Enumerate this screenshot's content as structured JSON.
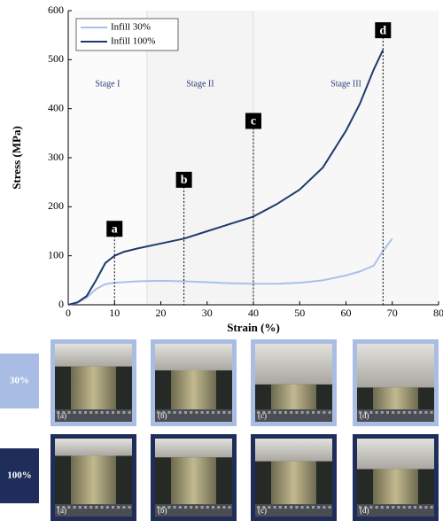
{
  "chart_data": {
    "type": "line",
    "xlabel": "Strain (%)",
    "ylabel": "Stress (MPa)",
    "x": [
      0,
      2,
      4,
      6,
      8,
      10,
      12,
      15,
      20,
      25,
      30,
      35,
      40,
      45,
      50,
      55,
      60,
      63,
      66,
      68,
      70
    ],
    "series": [
      {
        "name": "Infill 30%",
        "color": "#a9c1e8",
        "values": [
          0,
          4,
          15,
          32,
          42,
          45,
          46,
          48,
          49,
          48,
          46,
          44,
          43,
          43,
          45,
          50,
          60,
          68,
          80,
          110,
          135
        ]
      },
      {
        "name": "Infill 100%",
        "color": "#1f3a6e",
        "values": [
          0,
          5,
          18,
          50,
          85,
          100,
          108,
          115,
          125,
          135,
          150,
          165,
          180,
          205,
          235,
          280,
          355,
          410,
          480,
          520,
          null
        ]
      }
    ],
    "xlim": [
      0,
      80
    ],
    "ylim": [
      0,
      600
    ],
    "xticks": [
      0,
      10,
      20,
      30,
      40,
      50,
      60,
      70,
      80
    ],
    "yticks": [
      0,
      100,
      200,
      300,
      400,
      500,
      600
    ],
    "legend": "upper left",
    "stages": [
      {
        "label": "Stage I",
        "start": 0,
        "end": 17,
        "color": "#fbfbfb"
      },
      {
        "label": "Stage II",
        "start": 17,
        "end": 40,
        "color": "#f4f4f4"
      },
      {
        "label": "Stage III",
        "start": 40,
        "end": 80,
        "color": "#f7f7f7"
      }
    ],
    "annotations": [
      {
        "label": "a",
        "x": 10,
        "y": 155
      },
      {
        "label": "b",
        "x": 25,
        "y": 255
      },
      {
        "label": "c",
        "x": 40,
        "y": 375
      },
      {
        "label": "d",
        "x": 68,
        "y": 560
      }
    ]
  },
  "photos": {
    "rows": [
      {
        "label": "30%",
        "color": "#a9bde4",
        "panels": [
          "(a)",
          "(b)",
          "(c)",
          "(d)"
        ]
      },
      {
        "label": "100%",
        "color": "#1f2d5a",
        "panels": [
          "(a)",
          "(b)",
          "(c)",
          "(d)"
        ]
      }
    ]
  }
}
